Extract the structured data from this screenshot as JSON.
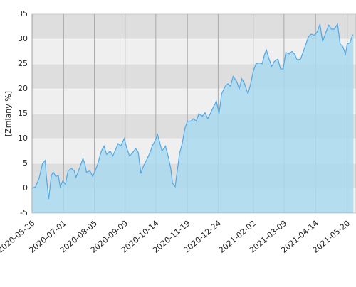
{
  "chart_data": {
    "type": "area",
    "ylabel": "[Zmiany %]",
    "x": [
      "2020-05-26",
      "2020-05-30",
      "2020-06-03",
      "2020-06-07",
      "2020-06-10",
      "2020-06-11",
      "2020-06-14",
      "2020-06-17",
      "2020-06-19",
      "2020-06-22",
      "2020-06-25",
      "2020-06-27",
      "2020-06-30",
      "2020-07-03",
      "2020-07-06",
      "2020-07-10",
      "2020-07-13",
      "2020-07-15",
      "2020-07-19",
      "2020-07-23",
      "2020-07-25",
      "2020-07-27",
      "2020-07-31",
      "2020-08-03",
      "2020-08-06",
      "2020-08-09",
      "2020-08-13",
      "2020-08-16",
      "2020-08-19",
      "2020-08-23",
      "2020-08-26",
      "2020-08-29",
      "2020-09-01",
      "2020-09-04",
      "2020-09-08",
      "2020-09-11",
      "2020-09-14",
      "2020-09-17",
      "2020-09-21",
      "2020-09-24",
      "2020-09-27",
      "2020-09-30",
      "2020-10-03",
      "2020-10-07",
      "2020-10-10",
      "2020-10-13",
      "2020-10-16",
      "2020-10-18",
      "2020-10-21",
      "2020-10-25",
      "2020-10-28",
      "2020-10-31",
      "2020-11-02",
      "2020-11-05",
      "2020-11-07",
      "2020-11-10",
      "2020-11-13",
      "2020-11-16",
      "2020-11-19",
      "2020-11-23",
      "2020-11-26",
      "2020-11-29",
      "2020-12-02",
      "2020-12-06",
      "2020-12-09",
      "2020-12-12",
      "2020-12-15",
      "2020-12-19",
      "2020-12-22",
      "2020-12-25",
      "2020-12-28",
      "2021-01-01",
      "2021-01-04",
      "2021-01-07",
      "2021-01-10",
      "2021-01-14",
      "2021-01-17",
      "2021-01-20",
      "2021-01-23",
      "2021-01-27",
      "2021-01-30",
      "2021-02-02",
      "2021-02-05",
      "2021-02-09",
      "2021-02-12",
      "2021-02-15",
      "2021-02-17",
      "2021-02-20",
      "2021-02-23",
      "2021-02-26",
      "2021-03-02",
      "2021-03-05",
      "2021-03-08",
      "2021-03-11",
      "2021-03-15",
      "2021-03-18",
      "2021-03-21",
      "2021-03-24",
      "2021-03-28",
      "2021-03-31",
      "2021-04-03",
      "2021-04-06",
      "2021-04-09",
      "2021-04-13",
      "2021-04-16",
      "2021-04-19",
      "2021-04-22",
      "2021-04-26",
      "2021-04-29",
      "2021-05-02",
      "2021-05-05",
      "2021-05-09",
      "2021-05-12",
      "2021-05-15",
      "2021-05-18",
      "2021-05-20",
      "2021-05-23",
      "2021-05-26",
      "2021-05-27"
    ],
    "series": [
      {
        "color": "#4fa8e8",
        "fill": "#a9d9ef",
        "values": [
          0,
          0.3,
          2,
          5,
          5.6,
          3,
          -2.2,
          2.5,
          3.3,
          2.4,
          2.5,
          0.3,
          1.5,
          0.8,
          3.5,
          4,
          3.5,
          2.2,
          4,
          6,
          5,
          3.2,
          3.5,
          2.4,
          3.5,
          5,
          7.5,
          8.5,
          6.8,
          7.5,
          6.5,
          7.7,
          9,
          8.5,
          10,
          8,
          6.5,
          7,
          8,
          7.2,
          3,
          4.5,
          5.5,
          7,
          8.5,
          9.5,
          10.8,
          9.5,
          7.5,
          8.5,
          6.5,
          4,
          1,
          0.3,
          3,
          7,
          9,
          12,
          13.5,
          13.5,
          14,
          13.5,
          15,
          14.5,
          15.2,
          14,
          15,
          16.5,
          17.5,
          15,
          19,
          20.5,
          21,
          20.5,
          22.5,
          21.5,
          20,
          22,
          21,
          19,
          21,
          23.5,
          25,
          25.2,
          25,
          27,
          27.8,
          26,
          24.5,
          25.5,
          26,
          24,
          24,
          27.3,
          27,
          27.5,
          27,
          25.8,
          26,
          27.5,
          29,
          30.5,
          31,
          30.8,
          31.5,
          33,
          29.5,
          31.5,
          32.8,
          32,
          32,
          33,
          29,
          28.5,
          27,
          29,
          29.2,
          30.8,
          30.8
        ]
      }
    ],
    "xlim": [
      "2020-05-26",
      "2021-05-30"
    ],
    "xticks": [
      "2020-05-26",
      "2020-07-01",
      "2020-08-05",
      "2020-09-09",
      "2020-10-14",
      "2020-11-19",
      "2020-12-24",
      "2021-02-02",
      "2021-03-09",
      "2021-04-14",
      "2021-05-20"
    ],
    "ylim": [
      -5,
      35
    ],
    "yticks": [
      -5,
      0,
      5,
      10,
      15,
      20,
      25,
      30,
      35
    ],
    "grid": true
  }
}
